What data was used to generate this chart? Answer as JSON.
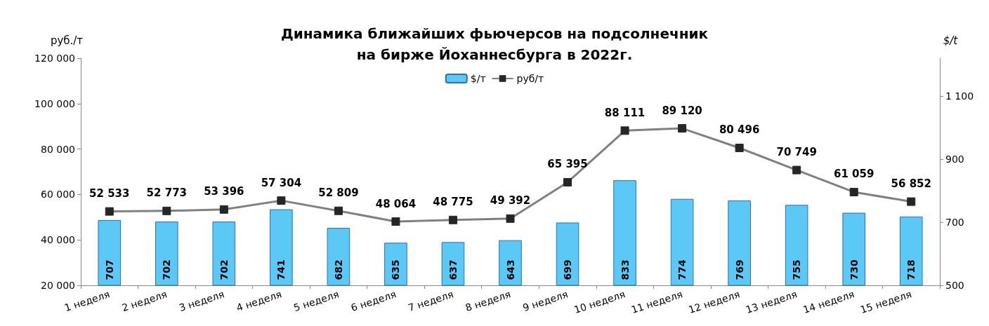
{
  "chart_data": {
    "type": "bar",
    "title": "Динамика ближайших фьючерсов на подсолнечник\nна бирже Йоханнесбурга в 2022г.",
    "ylabel": "руб./т",
    "y2label": "$/t",
    "categories": [
      "1 неделя",
      "2 неделя",
      "3 неделя",
      "4 неделя",
      "5 неделя",
      "6 неделя",
      "7 неделя",
      "8 неделя",
      "9 неделя",
      "10 неделя",
      "11 неделя",
      "12 неделя",
      "13 неделя",
      "14 неделя",
      "15 неделя"
    ],
    "series": [
      {
        "name": "$/т",
        "axis": "y2",
        "color": "#5bc8f5",
        "values": [
          707,
          702,
          702,
          741,
          682,
          635,
          637,
          643,
          699,
          833,
          774,
          769,
          755,
          730,
          718
        ],
        "value_labels": [
          "707",
          "702",
          "702",
          "741",
          "682",
          "635",
          "637",
          "643",
          "699",
          "833",
          "774",
          "769",
          "755",
          "730",
          "718"
        ]
      },
      {
        "name": "руб/т",
        "type": "line",
        "color": "#808080",
        "marker": "square",
        "values": [
          52533,
          52773,
          53396,
          57304,
          52809,
          48064,
          48775,
          49392,
          65395,
          88111,
          89120,
          80496,
          70749,
          61059,
          56852
        ],
        "value_labels": [
          "52 533",
          "52 773",
          "53 396",
          "57 304",
          "52 809",
          "48 064",
          "48 775",
          "49 392",
          "65 395",
          "88 111",
          "89 120",
          "80 496",
          "70 749",
          "61 059",
          "56 852"
        ]
      }
    ],
    "ylim": [
      20000,
      120000
    ],
    "yticks": [
      {
        "value": 20000,
        "label": "20 000"
      },
      {
        "value": 40000,
        "label": "40 000"
      },
      {
        "value": 60000,
        "label": "60 000"
      },
      {
        "value": 80000,
        "label": "80 000"
      },
      {
        "value": 100000,
        "label": "100 000"
      },
      {
        "value": 120000,
        "label": "120 000"
      }
    ],
    "y2lim": [
      500,
      1220
    ],
    "y2ticks": [
      500,
      700,
      900,
      {
        "value": 1100,
        "label": "1 100"
      }
    ],
    "legend": "top",
    "grid": false
  }
}
